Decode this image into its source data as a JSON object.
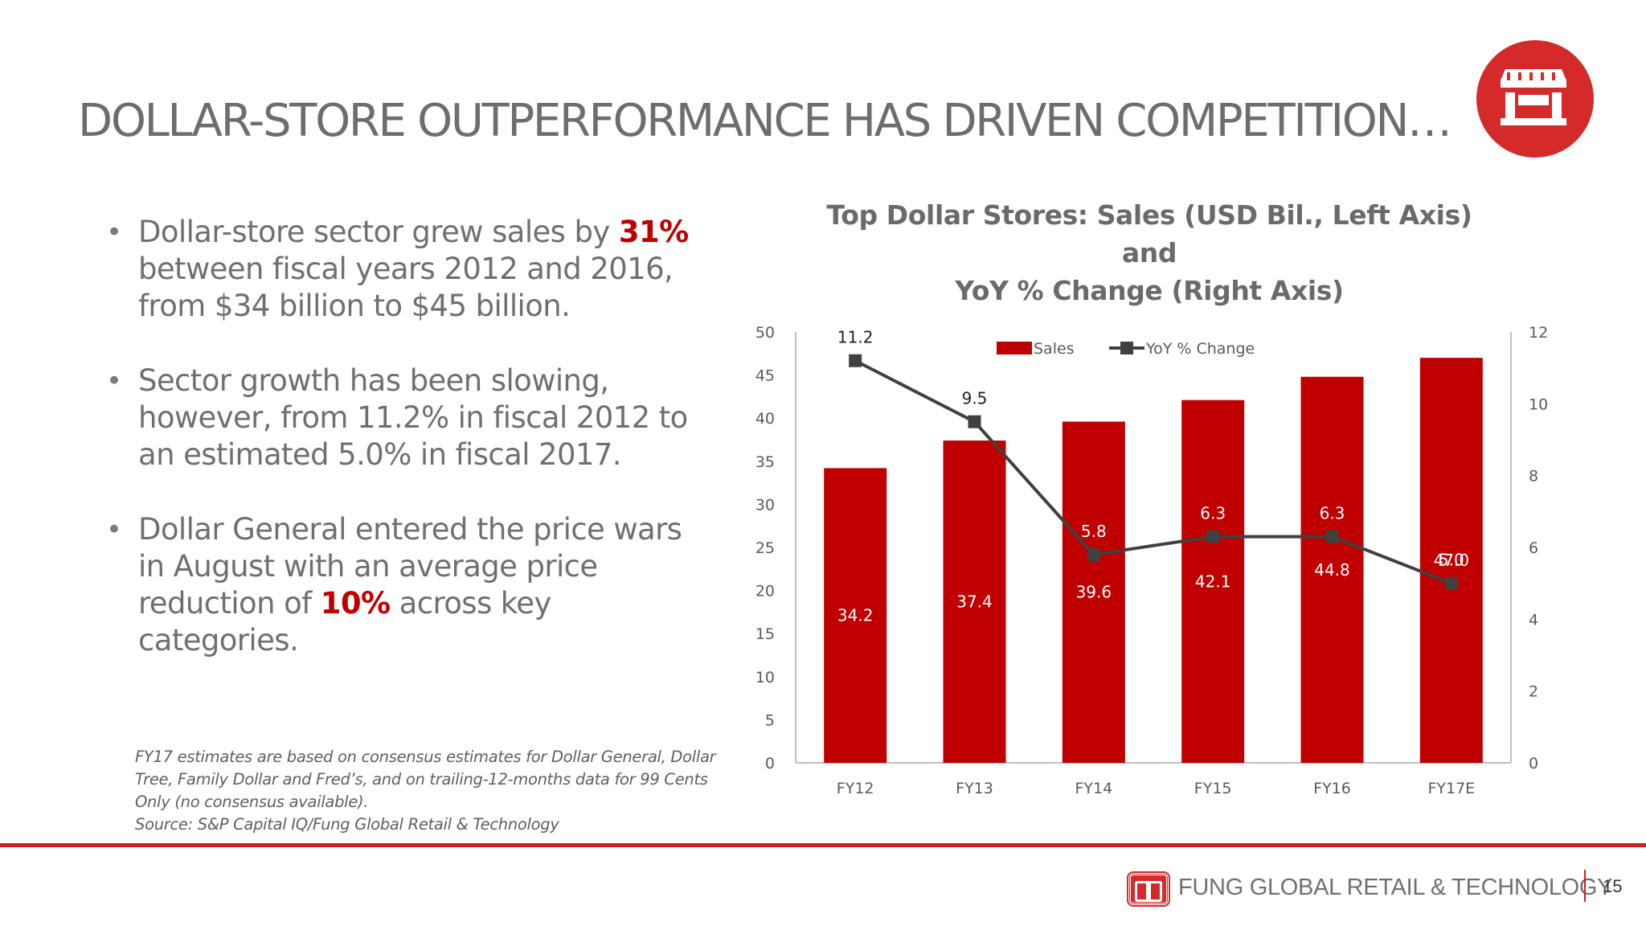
{
  "slide": {
    "title": "DOLLAR-STORE OUTPERFORMANCE HAS DRIVEN COMPETITION…",
    "icon": "store-icon",
    "accent_color": "#c00000"
  },
  "bullets": [
    {
      "parts": [
        {
          "text": "Dollar-store sector grew sales by ",
          "highlight": false
        },
        {
          "text": "31%",
          "highlight": true
        },
        {
          "text": " between fiscal years 2012 and 2016, from $34 billion to $45 billion.",
          "highlight": false
        }
      ]
    },
    {
      "parts": [
        {
          "text": "Sector growth has been slowing, however, from 11.2% in fiscal 2012 to an estimated 5.0% in fiscal 2017.",
          "highlight": false
        }
      ]
    },
    {
      "parts": [
        {
          "text": "Dollar General entered the price wars in August with an average price reduction of ",
          "highlight": false
        },
        {
          "text": "10%",
          "highlight": true
        },
        {
          "text": " across key categories.",
          "highlight": false
        }
      ]
    }
  ],
  "footnote": {
    "lines": [
      "FY17 estimates are based on consensus estimates for Dollar General, Dollar",
      "Tree, Family Dollar and Fred’s, and on trailing-12-months data for 99 Cents",
      "Only (no consensus available).",
      "Source: S&P Capital IQ/Fung Global Retail & Technology"
    ]
  },
  "chart_data": {
    "type": "bar",
    "title_lines": [
      "Top Dollar Stores: Sales (USD Bil., Left Axis) and",
      "YoY % Change (Right Axis)"
    ],
    "categories": [
      "FY12",
      "FY13",
      "FY14",
      "FY15",
      "FY16",
      "FY17E"
    ],
    "series": [
      {
        "name": "Sales",
        "type": "bar",
        "axis": "left",
        "color": "#c00000",
        "values": [
          34.2,
          37.4,
          39.6,
          42.1,
          44.8,
          47.0
        ],
        "labels": [
          "34.2",
          "37.4",
          "39.6",
          "42.1",
          "44.8",
          "47.0"
        ]
      },
      {
        "name": "YoY % Change",
        "type": "line",
        "axis": "right",
        "color": "#404040",
        "values": [
          11.2,
          9.5,
          5.8,
          6.3,
          6.3,
          5.0
        ],
        "labels": [
          "11.2",
          "9.5",
          "5.8",
          "6.3",
          "6.3",
          "5.0"
        ]
      }
    ],
    "left_axis": {
      "min": 0,
      "max": 50,
      "ticks": [
        "0",
        "5",
        "10",
        "15",
        "20",
        "25",
        "30",
        "35",
        "40",
        "45",
        "50"
      ]
    },
    "right_axis": {
      "min": 0,
      "max": 12,
      "ticks": [
        "0",
        "2",
        "4",
        "6",
        "8",
        "10",
        "12"
      ]
    },
    "legend": {
      "position": "top-center"
    },
    "grid": false
  },
  "footer": {
    "brand": "FUNG GLOBAL RETAIL & TECHNOLOGY",
    "page": "15"
  }
}
